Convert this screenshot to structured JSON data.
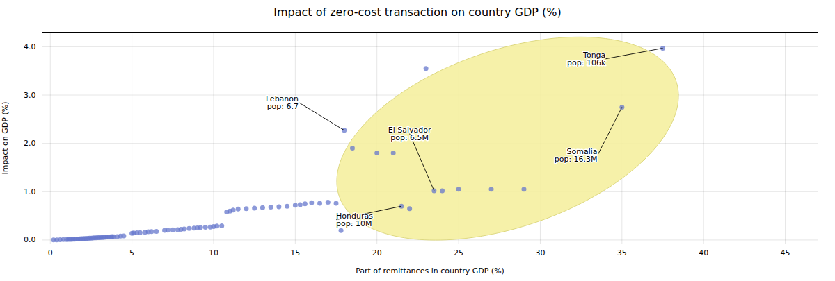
{
  "chart_data": {
    "type": "scatter",
    "title": "Impact of zero-cost transaction on country GDP (%)",
    "xlabel": "Part of remittances in country GDP (%)",
    "ylabel": "Impact on GDP (%)",
    "color": "#6677cc",
    "x": [
      0.2,
      0.4,
      0.6,
      0.8,
      1.0,
      1.1,
      1.2,
      1.3,
      1.4,
      1.5,
      1.6,
      1.7,
      1.8,
      1.9,
      2.0,
      2.1,
      2.2,
      2.3,
      2.4,
      2.5,
      2.6,
      2.7,
      2.8,
      2.9,
      3.0,
      3.1,
      3.2,
      3.3,
      3.4,
      3.5,
      3.6,
      3.7,
      3.8,
      3.9,
      4.1,
      4.3,
      4.5,
      5.0,
      5.1,
      5.3,
      5.5,
      5.8,
      6.0,
      6.2,
      6.5,
      7.0,
      7.2,
      7.5,
      7.8,
      8.0,
      8.2,
      8.5,
      8.8,
      9.0,
      9.2,
      9.5,
      9.8,
      10.0,
      10.2,
      10.5,
      10.8,
      11.0,
      11.2,
      11.5,
      12.0,
      12.5,
      13.0,
      13.5,
      14.0,
      14.5,
      15.0,
      15.3,
      15.6,
      16.0,
      16.5,
      17.0,
      17.5,
      17.8,
      18.0,
      18.5,
      20.0,
      21.0,
      21.5,
      22.0,
      23.0,
      23.5,
      24.0,
      25.0,
      27.0,
      29.0,
      35.0,
      37.5
    ],
    "values": [
      0.002,
      0.004,
      0.006,
      0.008,
      0.01,
      0.012,
      0.014,
      0.015,
      0.016,
      0.018,
      0.02,
      0.022,
      0.025,
      0.027,
      0.028,
      0.03,
      0.032,
      0.035,
      0.037,
      0.04,
      0.042,
      0.044,
      0.046,
      0.048,
      0.05,
      0.052,
      0.054,
      0.057,
      0.06,
      0.062,
      0.065,
      0.068,
      0.07,
      0.068,
      0.072,
      0.08,
      0.085,
      0.14,
      0.145,
      0.15,
      0.155,
      0.16,
      0.17,
      0.175,
      0.18,
      0.2,
      0.205,
      0.21,
      0.215,
      0.22,
      0.23,
      0.24,
      0.245,
      0.25,
      0.26,
      0.265,
      0.27,
      0.28,
      0.29,
      0.295,
      0.58,
      0.6,
      0.62,
      0.64,
      0.65,
      0.66,
      0.67,
      0.68,
      0.69,
      0.7,
      0.72,
      0.73,
      0.75,
      0.77,
      0.76,
      0.78,
      0.76,
      0.195,
      2.27,
      1.9,
      1.8,
      1.8,
      0.7,
      0.65,
      3.55,
      1.02,
      1.02,
      1.05,
      1.05,
      1.05,
      2.75,
      3.97
    ],
    "xlim": [
      -0.5,
      47
    ],
    "ylim": [
      -0.08,
      4.3
    ],
    "xticks": [
      0,
      5,
      10,
      15,
      20,
      25,
      30,
      35,
      40,
      45
    ],
    "yticks": [
      0,
      1,
      2,
      3,
      4
    ],
    "grid": true,
    "ellipse": {
      "x": 28.0,
      "y": 2.1,
      "width": 21.0,
      "height": 3.8,
      "angle": 5,
      "color": "#f5f0a0",
      "edge_color": "#ddd880"
    },
    "annotations": [
      {
        "label": "Lebanon\npop: 6.7",
        "x": 18.0,
        "y": 2.27,
        "text_x": 15.2,
        "text_y": 2.85,
        "align": "right"
      },
      {
        "label": "Honduras\npop: 10M",
        "x": 21.5,
        "y": 0.7,
        "text_x": 17.5,
        "text_y": 0.42,
        "align": "left"
      },
      {
        "label": "El Salvador\npop: 6.5M",
        "x": 23.5,
        "y": 1.02,
        "text_x": 22.0,
        "text_y": 2.2,
        "align": "center"
      },
      {
        "label": "Somalia\npop: 16.3M",
        "x": 35.0,
        "y": 2.75,
        "text_x": 33.5,
        "text_y": 1.75,
        "align": "right"
      },
      {
        "label": "Tonga\npop: 106k",
        "x": 37.5,
        "y": 3.97,
        "text_x": 34.0,
        "text_y": 3.75,
        "align": "right"
      }
    ]
  }
}
